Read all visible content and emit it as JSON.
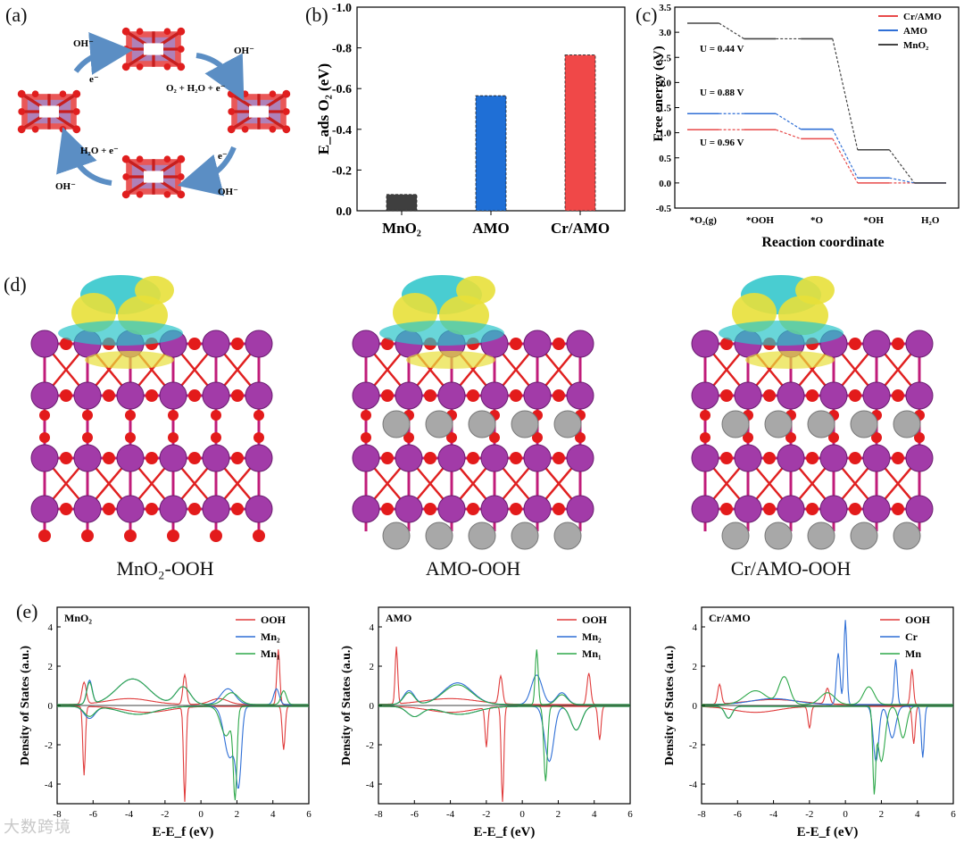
{
  "panel_labels": {
    "a": "(a)",
    "b": "(b)",
    "c": "(c)",
    "d": "(d)",
    "e": "(e)"
  },
  "panel_a": {
    "labels": {
      "oh_top_left": "OH⁻",
      "oh_top_right": "OH⁻",
      "e_left": "e⁻",
      "o2_step": "O₂ + H₂O + e⁻",
      "h2o_step": "H₂O + e⁻",
      "e_right": "e⁻",
      "oh_bottom_left": "OH⁻",
      "oh_bottom_right": "OH⁻"
    }
  },
  "panel_b": {
    "chart_data": {
      "type": "bar",
      "categories": [
        "MnO₂",
        "AMO",
        "Cr/AMO"
      ],
      "values": [
        -0.08,
        -0.565,
        -0.765
      ],
      "colors": [
        "#3f3f3f",
        "#1f6fd6",
        "#f04848"
      ],
      "ylabel": "E_ads O₂ (eV)",
      "ylim": [
        0.0,
        -1.0
      ],
      "yticks": [
        "0.0",
        "-0.2",
        "-0.4",
        "-0.6",
        "-0.8",
        "-1.0"
      ]
    }
  },
  "panel_c": {
    "chart_data": {
      "type": "line",
      "xlabel": "Reaction coordinate",
      "ylabel": "Free energy (eV)",
      "ylim": [
        -0.5,
        3.5
      ],
      "yticks": [
        "-0.5",
        "0.0",
        "0.5",
        "1.0",
        "1.5",
        "2.0",
        "2.5",
        "3.0",
        "3.5"
      ],
      "x_labels": [
        "*O₂(g)",
        "*OOH",
        "*O",
        "*OH",
        "H₂O"
      ],
      "series": [
        {
          "name": "Cr/AMO",
          "color": "#e84a4a",
          "values": [
            1.06,
            1.06,
            0.88,
            0.0,
            0.0
          ]
        },
        {
          "name": "AMO",
          "color": "#2f6fd6",
          "values": [
            1.38,
            1.38,
            1.07,
            0.1,
            0.0
          ]
        },
        {
          "name": "MnO₂",
          "color": "#444444",
          "values": [
            3.18,
            2.87,
            2.87,
            0.66,
            0.0
          ]
        }
      ],
      "annotations": [
        "U = 0.44 V",
        "U = 0.88 V",
        "U = 0.96 V"
      ]
    }
  },
  "panel_d": {
    "captions": [
      "MnO₂-OOH",
      "AMO-OOH",
      "Cr/AMO-OOH"
    ]
  },
  "panel_e": {
    "chart_data": [
      {
        "type": "line",
        "title": "MnO₂",
        "xlabel": "E-E_f (eV)",
        "ylabel": "Density of States (a.u.)",
        "xlim": [
          -8,
          6
        ],
        "ylim": [
          -5,
          5
        ],
        "xticks": [
          "-8",
          "-6",
          "-4",
          "-2",
          "0",
          "2",
          "4",
          "6"
        ],
        "yticks": [
          "-4",
          "-2",
          "0",
          "2",
          "4"
        ],
        "series": [
          {
            "name": "OOH",
            "color": "#e03c3c"
          },
          {
            "name": "Mn₂",
            "color": "#2f6fd6"
          },
          {
            "name": "Mn₁",
            "color": "#2ea84a"
          }
        ]
      },
      {
        "type": "line",
        "title": "AMO",
        "xlabel": "E-E_f (eV)",
        "ylabel": "Density of States (a.u.)",
        "xlim": [
          -8,
          6
        ],
        "ylim": [
          -5,
          5
        ],
        "xticks": [
          "-8",
          "-6",
          "-4",
          "-2",
          "0",
          "2",
          "4",
          "6"
        ],
        "yticks": [
          "-4",
          "-2",
          "0",
          "2",
          "4"
        ],
        "series": [
          {
            "name": "OOH",
            "color": "#e03c3c"
          },
          {
            "name": "Mn₂",
            "color": "#2f6fd6"
          },
          {
            "name": "Mn₁",
            "color": "#2ea84a"
          }
        ]
      },
      {
        "type": "line",
        "title": "Cr/AMO",
        "xlabel": "E-E_f (eV)",
        "ylabel": "Density of States (a.u.)",
        "xlim": [
          -8,
          6
        ],
        "ylim": [
          -5,
          5
        ],
        "xticks": [
          "-8",
          "-6",
          "-4",
          "-2",
          "0",
          "2",
          "4",
          "6"
        ],
        "yticks": [
          "-4",
          "-2",
          "0",
          "2",
          "4"
        ],
        "series": [
          {
            "name": "OOH",
            "color": "#e03c3c"
          },
          {
            "name": "Cr",
            "color": "#2f6fd6"
          },
          {
            "name": "Mn",
            "color": "#2ea84a"
          }
        ]
      }
    ]
  },
  "watermark": "大数跨境"
}
